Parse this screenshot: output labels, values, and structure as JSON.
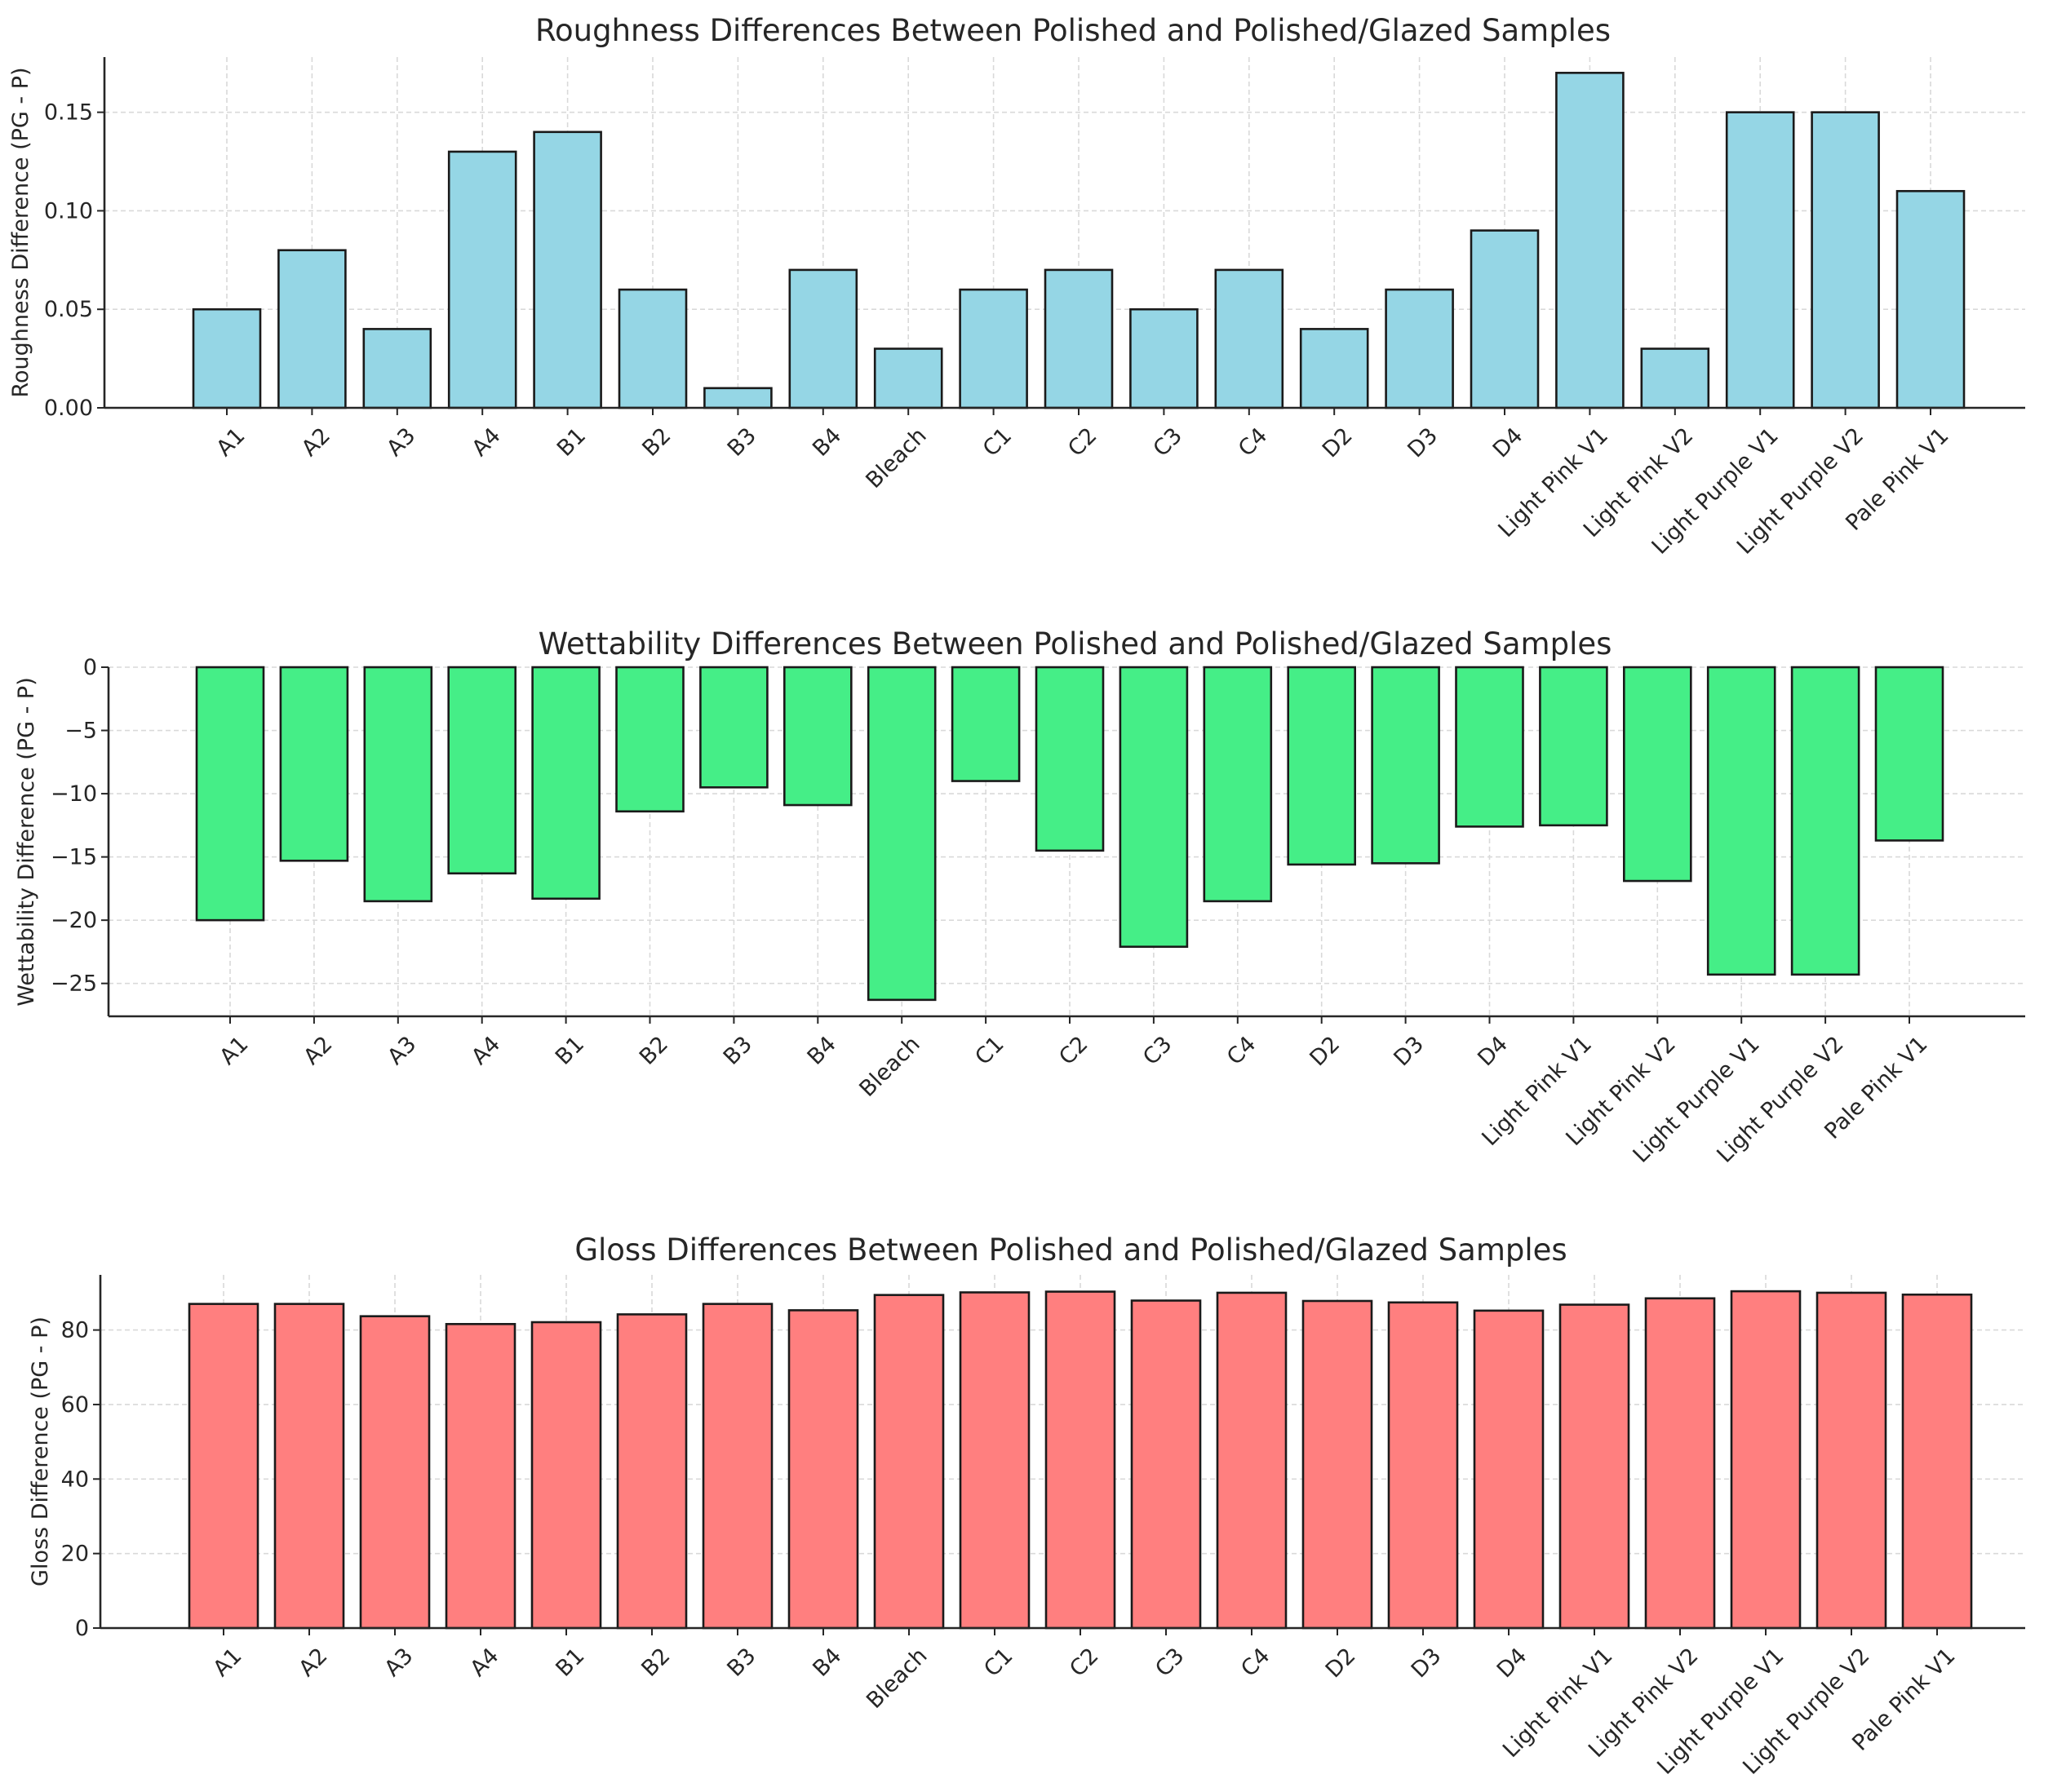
{
  "chart_data": [
    {
      "type": "bar",
      "title": "Roughness Differences Between Polished and Polished/Glazed Samples",
      "xlabel": "",
      "ylabel": "Roughness Difference (PG - P)",
      "color": "#95d6e5",
      "categories": [
        "A1",
        "A2",
        "A3",
        "A4",
        "B1",
        "B2",
        "B3",
        "B4",
        "Bleach",
        "C1",
        "C2",
        "C3",
        "C4",
        "D2",
        "D3",
        "D4",
        "Light Pink V1",
        "Light Pink V2",
        "Light Purple V1",
        "Light Purple V2",
        "Pale Pink V1"
      ],
      "values": [
        0.05,
        0.08,
        0.04,
        0.13,
        0.14,
        0.06,
        0.01,
        0.07,
        0.03,
        0.06,
        0.07,
        0.05,
        0.07,
        0.04,
        0.06,
        0.09,
        0.17,
        0.03,
        0.15,
        0.15,
        0.11
      ],
      "ylim": [
        0,
        0.178
      ],
      "yticks": [
        0,
        0.05,
        0.1,
        0.15
      ],
      "ytick_labels": [
        "0.00",
        "0.05",
        "0.10",
        "0.15"
      ],
      "grid": true
    },
    {
      "type": "bar",
      "title": "Wettability Differences Between Polished and Polished/Glazed Samples",
      "xlabel": "",
      "ylabel": "Wettability Difference (PG - P)",
      "color": "#45ee87",
      "categories": [
        "A1",
        "A2",
        "A3",
        "A4",
        "B1",
        "B2",
        "B3",
        "B4",
        "Bleach",
        "C1",
        "C2",
        "C3",
        "C4",
        "D2",
        "D3",
        "D4",
        "Light Pink V1",
        "Light Pink V2",
        "Light Purple V1",
        "Light Purple V2",
        "Pale Pink V1"
      ],
      "values": [
        -20.0,
        -15.3,
        -18.5,
        -16.3,
        -18.3,
        -11.4,
        -9.5,
        -10.9,
        -26.3,
        -9.0,
        -14.5,
        -22.1,
        -18.5,
        -15.6,
        -15.5,
        -12.6,
        -12.5,
        -16.9,
        -24.3,
        -24.3,
        -13.7
      ],
      "ylim": [
        -27.6,
        0
      ],
      "yticks": [
        0,
        -5,
        -10,
        -15,
        -20,
        -25
      ],
      "ytick_labels": [
        "0",
        "−5",
        "−10",
        "−15",
        "−20",
        "−25"
      ],
      "grid": true
    },
    {
      "type": "bar",
      "title": "Gloss Differences Between Polished and Polished/Glazed Samples",
      "xlabel": "",
      "ylabel": "Gloss Difference (PG - P)",
      "color": "#ff7f7f",
      "categories": [
        "A1",
        "A2",
        "A3",
        "A4",
        "B1",
        "B2",
        "B3",
        "B4",
        "Bleach",
        "C1",
        "C2",
        "C3",
        "C4",
        "D2",
        "D3",
        "D4",
        "Light Pink V1",
        "Light Pink V2",
        "Light Purple V1",
        "Light Purple V2",
        "Pale Pink V1"
      ],
      "values": [
        87.0,
        87.0,
        83.7,
        81.6,
        82.1,
        84.2,
        87.0,
        85.3,
        89.4,
        90.1,
        90.3,
        87.9,
        90.0,
        87.8,
        87.4,
        85.2,
        86.8,
        88.5,
        90.4,
        90.0,
        89.5
      ],
      "ylim": [
        0,
        94.8
      ],
      "yticks": [
        0,
        20,
        40,
        60,
        80
      ],
      "ytick_labels": [
        "0",
        "20",
        "40",
        "60",
        "80"
      ],
      "grid": true
    }
  ]
}
